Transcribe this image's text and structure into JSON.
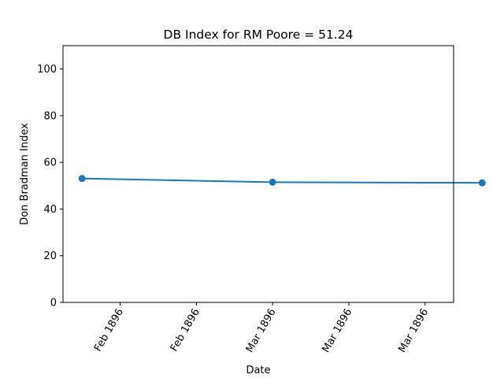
{
  "chart_data": {
    "type": "line",
    "title": "DB Index for RM Poore = 51.24",
    "xlabel": "Date",
    "ylabel": "Don Bradman Index",
    "ylim": [
      0,
      110
    ],
    "yticks": [
      0,
      20,
      40,
      60,
      80,
      100
    ],
    "xlim": [
      "1896-02-08",
      "1896-03-20"
    ],
    "xticks": [
      {
        "date": "1896-02-14",
        "label": "Feb 1896"
      },
      {
        "date": "1896-02-22",
        "label": "Feb 1896"
      },
      {
        "date": "1896-03-01",
        "label": "Mar 1896"
      },
      {
        "date": "1896-03-09",
        "label": "Mar 1896"
      },
      {
        "date": "1896-03-17",
        "label": "Mar 1896"
      }
    ],
    "series": [
      {
        "color": "#1f77b4",
        "points": [
          {
            "x": "1896-02-10",
            "y": 53.1
          },
          {
            "x": "1896-03-01",
            "y": 51.5
          },
          {
            "x": "1896-03-23",
            "y": 51.24
          }
        ]
      }
    ],
    "grid": false,
    "legend": "none"
  }
}
